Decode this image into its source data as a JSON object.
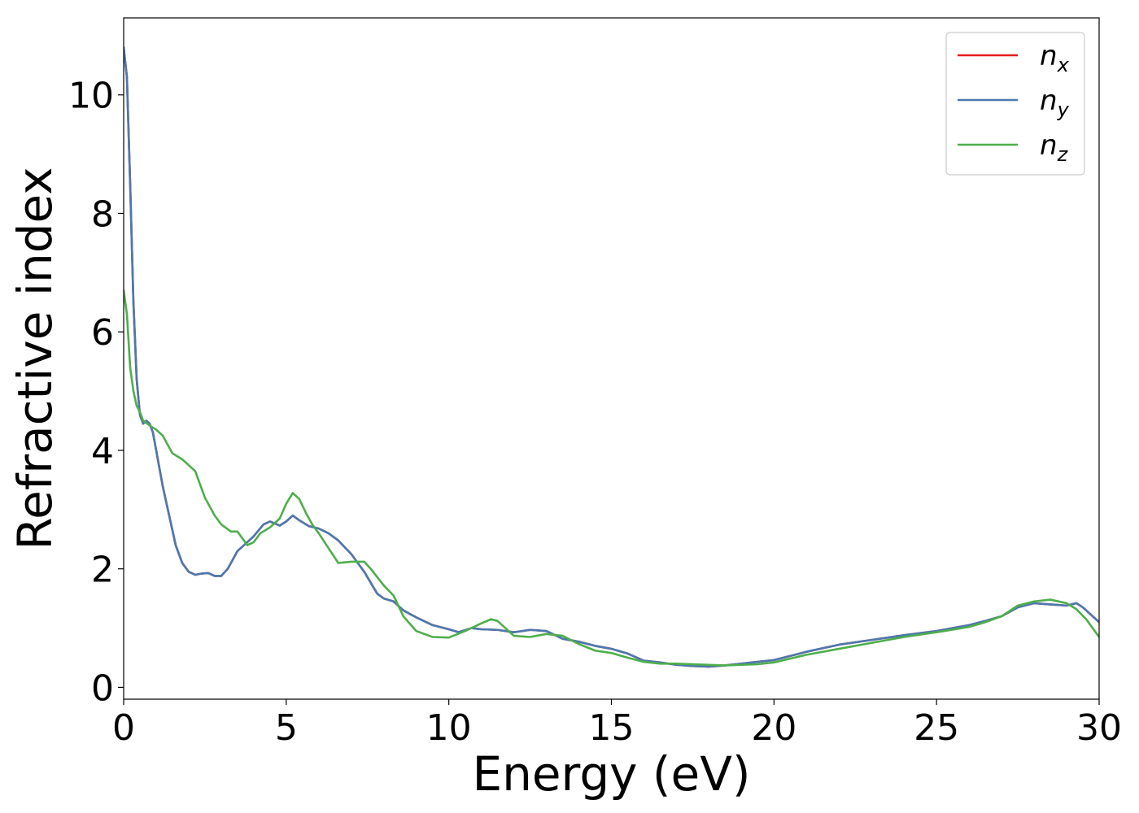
{
  "chart_data": {
    "type": "line",
    "title": "",
    "xlabel": "Energy (eV)",
    "ylabel": "Refractive index",
    "xlim": [
      0,
      30
    ],
    "ylim": [
      -0.2,
      11.3
    ],
    "xticks": [
      "0",
      "5",
      "10",
      "15",
      "20",
      "25",
      "30"
    ],
    "yticks": [
      "0",
      "2",
      "4",
      "6",
      "8",
      "10"
    ],
    "grid": false,
    "legend_position": "top-right",
    "series": [
      {
        "name": "n_x",
        "label_main": "n",
        "label_sub": "x",
        "color": "#e41a1c",
        "x": [
          0,
          0.1,
          0.2,
          0.3,
          0.4,
          0.5,
          0.6,
          0.7,
          0.8,
          0.9,
          1.0,
          1.2,
          1.4,
          1.6,
          1.8,
          2.0,
          2.2,
          2.4,
          2.6,
          2.8,
          3.0,
          3.2,
          3.5,
          3.8,
          4.0,
          4.3,
          4.5,
          4.8,
          5.0,
          5.2,
          5.4,
          5.7,
          6.0,
          6.3,
          6.6,
          7.0,
          7.4,
          7.8,
          8.0,
          8.3,
          8.6,
          9.0,
          9.5,
          10.0,
          10.3,
          10.7,
          11.0,
          11.5,
          12.0,
          12.5,
          13.0,
          13.5,
          14.0,
          14.5,
          15.0,
          15.5,
          16.0,
          16.5,
          17.0,
          17.5,
          18.0,
          18.5,
          19.0,
          19.5,
          20.0,
          21.0,
          22.0,
          23.0,
          24.0,
          25.0,
          26.0,
          26.5,
          27.0,
          27.5,
          28.0,
          28.5,
          29.0,
          29.3,
          29.5,
          29.8,
          30.0
        ],
        "y": [
          10.8,
          10.3,
          8.5,
          6.5,
          5.2,
          4.6,
          4.45,
          4.5,
          4.45,
          4.3,
          4.0,
          3.4,
          2.9,
          2.4,
          2.1,
          1.95,
          1.9,
          1.92,
          1.93,
          1.88,
          1.88,
          2.0,
          2.3,
          2.45,
          2.55,
          2.75,
          2.8,
          2.73,
          2.8,
          2.9,
          2.82,
          2.72,
          2.68,
          2.6,
          2.48,
          2.25,
          1.95,
          1.58,
          1.5,
          1.45,
          1.3,
          1.18,
          1.05,
          0.98,
          0.93,
          1.0,
          0.98,
          0.97,
          0.93,
          0.97,
          0.95,
          0.82,
          0.77,
          0.7,
          0.65,
          0.57,
          0.45,
          0.42,
          0.38,
          0.36,
          0.35,
          0.37,
          0.4,
          0.43,
          0.46,
          0.6,
          0.72,
          0.8,
          0.88,
          0.95,
          1.05,
          1.12,
          1.2,
          1.35,
          1.42,
          1.4,
          1.38,
          1.42,
          1.35,
          1.2,
          1.1
        ]
      },
      {
        "name": "n_y",
        "label_main": "n",
        "label_sub": "y",
        "color": "#4a79b0",
        "x": [
          0,
          0.1,
          0.2,
          0.3,
          0.4,
          0.5,
          0.6,
          0.7,
          0.8,
          0.9,
          1.0,
          1.2,
          1.4,
          1.6,
          1.8,
          2.0,
          2.2,
          2.4,
          2.6,
          2.8,
          3.0,
          3.2,
          3.5,
          3.8,
          4.0,
          4.3,
          4.5,
          4.8,
          5.0,
          5.2,
          5.4,
          5.7,
          6.0,
          6.3,
          6.6,
          7.0,
          7.4,
          7.8,
          8.0,
          8.3,
          8.6,
          9.0,
          9.5,
          10.0,
          10.3,
          10.7,
          11.0,
          11.5,
          12.0,
          12.5,
          13.0,
          13.5,
          14.0,
          14.5,
          15.0,
          15.5,
          16.0,
          16.5,
          17.0,
          17.5,
          18.0,
          18.5,
          19.0,
          19.5,
          20.0,
          21.0,
          22.0,
          23.0,
          24.0,
          25.0,
          26.0,
          26.5,
          27.0,
          27.5,
          28.0,
          28.5,
          29.0,
          29.3,
          29.5,
          29.8,
          30.0
        ],
        "y": [
          10.8,
          10.3,
          8.5,
          6.5,
          5.2,
          4.6,
          4.45,
          4.5,
          4.45,
          4.3,
          4.0,
          3.4,
          2.9,
          2.4,
          2.1,
          1.95,
          1.9,
          1.92,
          1.93,
          1.88,
          1.88,
          2.0,
          2.3,
          2.45,
          2.55,
          2.75,
          2.8,
          2.73,
          2.8,
          2.9,
          2.82,
          2.72,
          2.68,
          2.6,
          2.48,
          2.25,
          1.95,
          1.58,
          1.5,
          1.45,
          1.3,
          1.18,
          1.05,
          0.98,
          0.93,
          1.0,
          0.98,
          0.97,
          0.93,
          0.97,
          0.95,
          0.82,
          0.77,
          0.7,
          0.65,
          0.57,
          0.45,
          0.42,
          0.38,
          0.36,
          0.35,
          0.37,
          0.4,
          0.43,
          0.46,
          0.6,
          0.72,
          0.8,
          0.88,
          0.95,
          1.05,
          1.12,
          1.2,
          1.35,
          1.42,
          1.4,
          1.38,
          1.42,
          1.35,
          1.2,
          1.1
        ]
      },
      {
        "name": "n_z",
        "label_main": "n",
        "label_sub": "z",
        "color": "#4daf4a",
        "x": [
          0,
          0.1,
          0.2,
          0.3,
          0.4,
          0.5,
          0.6,
          0.8,
          1.0,
          1.2,
          1.5,
          1.8,
          2.0,
          2.2,
          2.5,
          2.8,
          3.0,
          3.3,
          3.5,
          3.8,
          4.0,
          4.2,
          4.5,
          4.8,
          5.0,
          5.2,
          5.4,
          5.6,
          5.8,
          6.0,
          6.3,
          6.6,
          7.0,
          7.4,
          7.6,
          8.0,
          8.3,
          8.6,
          9.0,
          9.5,
          10.0,
          10.5,
          11.0,
          11.3,
          11.5,
          12.0,
          12.5,
          13.0,
          13.5,
          14.0,
          14.5,
          15.0,
          15.5,
          16.0,
          16.5,
          17.0,
          17.5,
          18.0,
          18.5,
          19.0,
          19.5,
          20.0,
          21.0,
          22.0,
          23.0,
          24.0,
          25.0,
          26.0,
          26.5,
          27.0,
          27.5,
          28.0,
          28.5,
          29.0,
          29.3,
          29.6,
          30.0
        ],
        "y": [
          6.7,
          6.3,
          5.4,
          5.0,
          4.75,
          4.65,
          4.5,
          4.42,
          4.35,
          4.25,
          3.95,
          3.85,
          3.75,
          3.65,
          3.2,
          2.9,
          2.75,
          2.63,
          2.63,
          2.4,
          2.45,
          2.6,
          2.7,
          2.85,
          3.1,
          3.28,
          3.18,
          2.95,
          2.75,
          2.6,
          2.35,
          2.1,
          2.12,
          2.12,
          2.0,
          1.72,
          1.55,
          1.2,
          0.95,
          0.85,
          0.84,
          0.95,
          1.08,
          1.15,
          1.12,
          0.87,
          0.85,
          0.9,
          0.87,
          0.73,
          0.62,
          0.58,
          0.5,
          0.43,
          0.4,
          0.4,
          0.39,
          0.38,
          0.37,
          0.38,
          0.39,
          0.42,
          0.55,
          0.65,
          0.75,
          0.85,
          0.93,
          1.02,
          1.1,
          1.2,
          1.38,
          1.45,
          1.48,
          1.42,
          1.32,
          1.15,
          0.85
        ]
      }
    ]
  }
}
